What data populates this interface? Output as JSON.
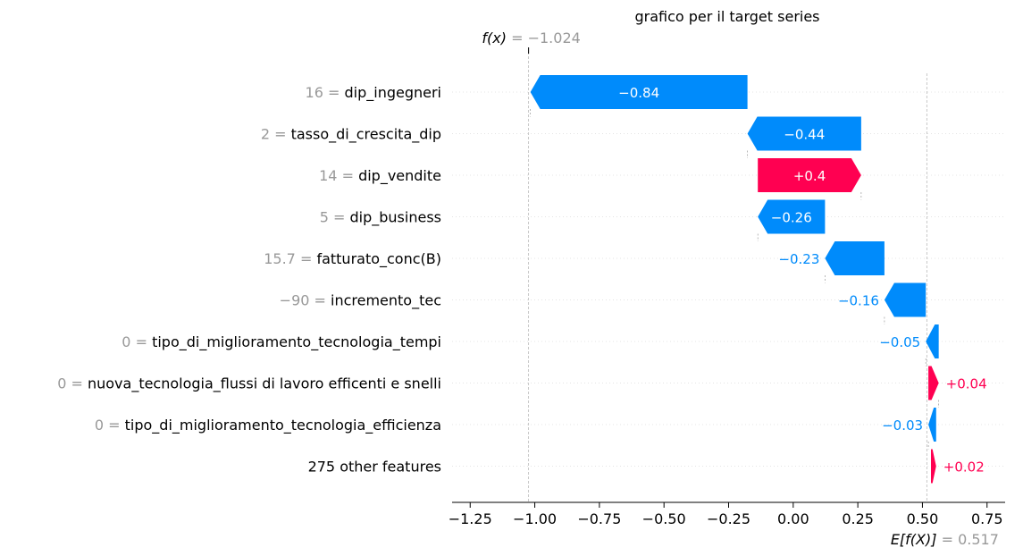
{
  "chart_data": {
    "type": "waterfall",
    "title": "grafico per il target series",
    "fx": {
      "label": "f(x)",
      "eq": "=",
      "value_text": "−1.024",
      "value": -1.024
    },
    "base": {
      "label": "E[f(X)]",
      "eq": "=",
      "value_text": "0.517",
      "value": 0.517
    },
    "colors": {
      "negative": "#008bfb",
      "positive": "#ff0051"
    },
    "xlim": [
      -1.32,
      0.82
    ],
    "x_ticks": [
      {
        "value": -1.25,
        "label": "−1.25"
      },
      {
        "value": -1.0,
        "label": "−1.00"
      },
      {
        "value": -0.75,
        "label": "−0.75"
      },
      {
        "value": -0.5,
        "label": "−0.50"
      },
      {
        "value": -0.25,
        "label": "−0.25"
      },
      {
        "value": 0.0,
        "label": "0.00"
      },
      {
        "value": 0.25,
        "label": "0.25"
      },
      {
        "value": 0.5,
        "label": "0.50"
      },
      {
        "value": 0.75,
        "label": "0.75"
      }
    ],
    "features": [
      {
        "value": "16",
        "name": "dip_ingegneri",
        "contribution": -0.84,
        "label": "−0.84",
        "start": -0.177,
        "end": -1.017
      },
      {
        "value": "2",
        "name": "tasso_di_crescita_dip",
        "contribution": -0.44,
        "label": "−0.44",
        "start": 0.263,
        "end": -0.177
      },
      {
        "value": "14",
        "name": "dip_vendite",
        "contribution": 0.4,
        "label": "+0.4",
        "start": -0.137,
        "end": 0.263
      },
      {
        "value": "5",
        "name": "dip_business",
        "contribution": -0.26,
        "label": "−0.26",
        "start": 0.123,
        "end": -0.137
      },
      {
        "value": "15.7",
        "name": "fatturato_conc(B)",
        "contribution": -0.23,
        "label": "−0.23",
        "start": 0.353,
        "end": 0.123
      },
      {
        "value": "−90",
        "name": "incremento_tec",
        "contribution": -0.16,
        "label": "−0.16",
        "start": 0.513,
        "end": 0.353
      },
      {
        "value": "0",
        "name": "tipo_di_miglioramento_tecnologia_tempi",
        "contribution": -0.05,
        "label": "−0.05",
        "start": 0.563,
        "end": 0.513
      },
      {
        "value": "0",
        "name": "nuova_tecnologia_flussi di lavoro efficenti e snelli",
        "contribution": 0.04,
        "label": "+0.04",
        "start": 0.523,
        "end": 0.563
      },
      {
        "value": "0",
        "name": "tipo_di_miglioramento_tecnologia_efficienza",
        "contribution": -0.03,
        "label": "−0.03",
        "start": 0.553,
        "end": 0.523
      },
      {
        "value": "",
        "name": "275 other features",
        "contribution": 0.02,
        "label": "+0.02",
        "start": 0.533,
        "end": 0.553
      }
    ]
  }
}
